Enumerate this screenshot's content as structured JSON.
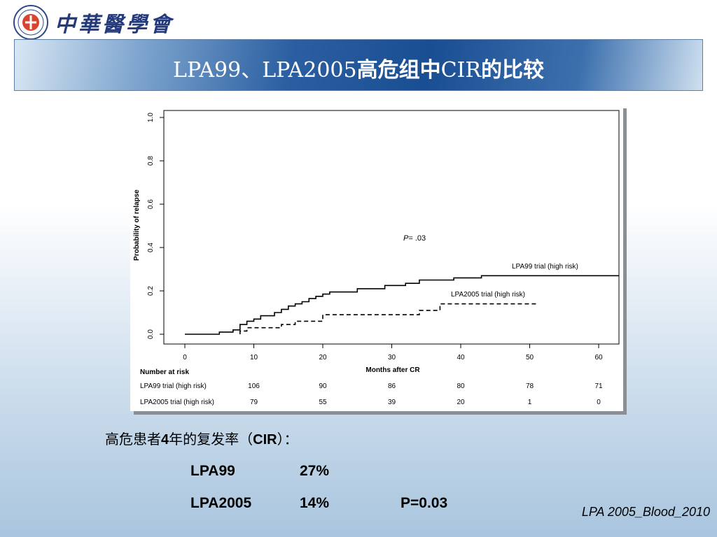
{
  "header": {
    "logo_icon": "medical-association-seal-icon",
    "logo_text": "中華醫學會"
  },
  "banner": {
    "title_prefix": "LPA99、LPA2005",
    "title_cjk1": "高危组中",
    "title_mid": "CIR",
    "title_cjk2": "的比较"
  },
  "chart_data": {
    "type": "line",
    "xlabel": "Months after CR",
    "ylabel": "Probability of relapse",
    "xlim": [
      0,
      63
    ],
    "ylim": [
      0,
      1.0
    ],
    "x_ticks": [
      "0",
      "10",
      "20",
      "30",
      "40",
      "50",
      "60"
    ],
    "y_ticks": [
      "0.0",
      "0.2",
      "0.4",
      "0.6",
      "0.8",
      "1.0"
    ],
    "annotation_p_italic": "P",
    "annotation_p_rest": "= .03",
    "series": [
      {
        "name": "LPA99 trial (high risk)",
        "style": "solid",
        "points": [
          [
            0,
            0
          ],
          [
            5,
            0
          ],
          [
            5,
            0.01
          ],
          [
            7,
            0.01
          ],
          [
            7,
            0.02
          ],
          [
            8,
            0.02
          ],
          [
            8,
            0.045
          ],
          [
            9,
            0.045
          ],
          [
            9,
            0.06
          ],
          [
            10,
            0.06
          ],
          [
            10,
            0.07
          ],
          [
            11,
            0.07
          ],
          [
            11,
            0.085
          ],
          [
            13,
            0.085
          ],
          [
            13,
            0.1
          ],
          [
            14,
            0.1
          ],
          [
            14,
            0.115
          ],
          [
            15,
            0.115
          ],
          [
            15,
            0.13
          ],
          [
            16,
            0.13
          ],
          [
            16,
            0.14
          ],
          [
            17,
            0.14
          ],
          [
            17,
            0.15
          ],
          [
            18,
            0.15
          ],
          [
            18,
            0.165
          ],
          [
            19,
            0.165
          ],
          [
            19,
            0.175
          ],
          [
            20,
            0.175
          ],
          [
            20,
            0.185
          ],
          [
            21,
            0.185
          ],
          [
            21,
            0.195
          ],
          [
            25,
            0.195
          ],
          [
            25,
            0.21
          ],
          [
            29,
            0.21
          ],
          [
            29,
            0.225
          ],
          [
            32,
            0.225
          ],
          [
            32,
            0.235
          ],
          [
            34,
            0.235
          ],
          [
            34,
            0.25
          ],
          [
            39,
            0.25
          ],
          [
            39,
            0.26
          ],
          [
            43,
            0.26
          ],
          [
            43,
            0.27
          ],
          [
            63,
            0.27
          ]
        ]
      },
      {
        "name": "LPA2005 trial (high risk)",
        "style": "dashed",
        "points": [
          [
            8,
            0
          ],
          [
            8,
            0.015
          ],
          [
            9,
            0.015
          ],
          [
            9,
            0.03
          ],
          [
            14,
            0.03
          ],
          [
            14,
            0.045
          ],
          [
            16,
            0.045
          ],
          [
            16,
            0.06
          ],
          [
            20,
            0.06
          ],
          [
            20,
            0.09
          ],
          [
            34,
            0.09
          ],
          [
            34,
            0.11
          ],
          [
            37,
            0.11
          ],
          [
            37,
            0.14
          ],
          [
            51,
            0.14
          ]
        ]
      }
    ],
    "risk_table": {
      "title": "Number at risk",
      "rows": [
        {
          "label": "LPA99 trial (high risk)",
          "values": [
            "106",
            "90",
            "86",
            "80",
            "78",
            "71"
          ]
        },
        {
          "label": "LPA2005 trial (high risk)",
          "values": [
            "79",
            "55",
            "39",
            "20",
            "1",
            "0"
          ]
        }
      ]
    }
  },
  "summary": {
    "heading_pre": "高危患者",
    "heading_num": "4",
    "heading_mid": "年的复发率（",
    "heading_cir": "CIR",
    "heading_post": "）：",
    "rows": [
      {
        "trial": "LPA99",
        "rate": "27%"
      },
      {
        "trial": "LPA2005",
        "rate": "14%",
        "p_value": "P=0.03"
      }
    ]
  },
  "citation": "LPA 2005_Blood_2010"
}
